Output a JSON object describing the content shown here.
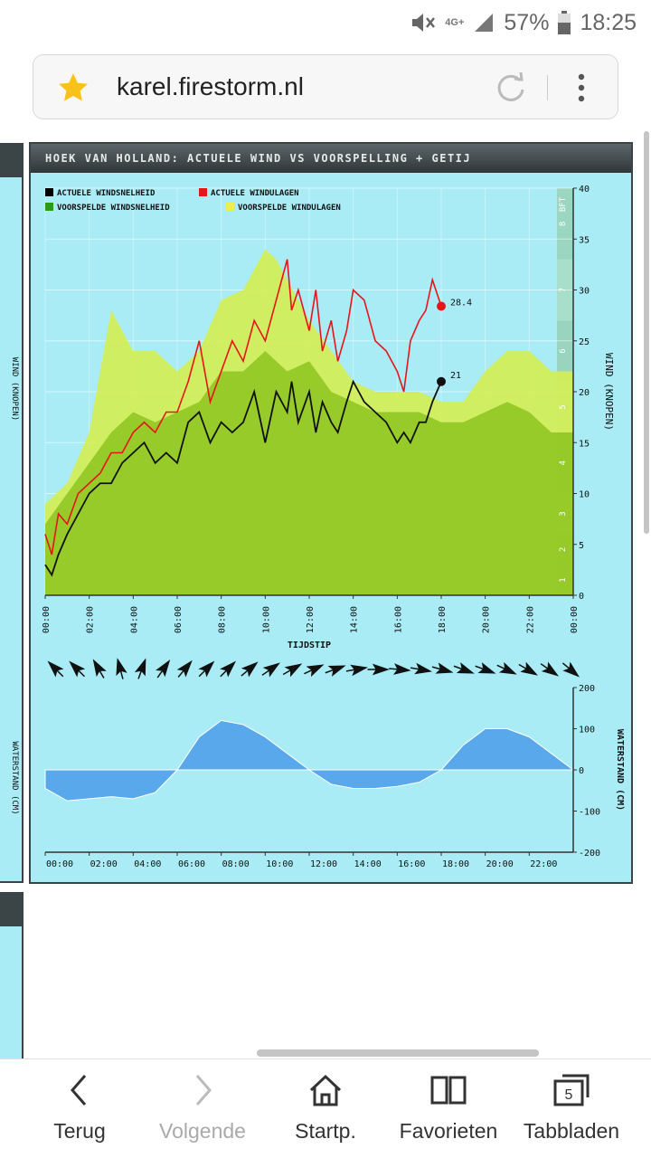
{
  "status_bar": {
    "network": "4G+",
    "battery": "57%",
    "time": "18:25",
    "icons": [
      "mute-icon",
      "signal-icon",
      "battery-icon"
    ]
  },
  "browser": {
    "url": "karel.firestorm.nl",
    "bookmark_icon": "star-icon",
    "reload_icon": "reload-icon",
    "menu_icon": "more-vertical-icon"
  },
  "side_panel": {
    "left_label_top": "WIND (KNOPEN)",
    "left_label_bottom": "WATERSTAND (CM)"
  },
  "widget": {
    "title": "HOEK VAN HOLLAND: ACTUELE WIND VS VOORSPELLING + GETIJ"
  },
  "chart_data": [
    {
      "type": "area",
      "title": "HOEK VAN HOLLAND: ACTUELE WIND VS VOORSPELLING + GETIJ",
      "xlabel": "TIJDSTIP",
      "ylabel": "WIND (KNOPEN)",
      "ylim": [
        0,
        40
      ],
      "yticks": [
        0,
        5,
        10,
        15,
        20,
        25,
        30,
        35,
        40
      ],
      "xticks": [
        "00:00",
        "02:00",
        "04:00",
        "06:00",
        "08:00",
        "10:00",
        "12:00",
        "14:00",
        "16:00",
        "18:00",
        "20:00",
        "22:00",
        "00:00"
      ],
      "bft_label": "BFT",
      "bft_scale": [
        "1",
        "2",
        "3",
        "4",
        "5",
        "6",
        "7",
        "8"
      ],
      "grid": true,
      "legend": [
        "ACTUELE WINDSNELHEID",
        "ACTUELE WINDULAGEN",
        "VOORSPELDE WINDSNELHEID",
        "VOORSPELDE WINDULAGEN"
      ],
      "legend_colors": [
        "#000000",
        "#e8141a",
        "#2a9a1a",
        "#e8f24a"
      ],
      "series": [
        {
          "name": "VOORSPELDE WINDULAGEN",
          "color": "#d2ec4e",
          "x": [
            0,
            1,
            2,
            2.5,
            3,
            4,
            5,
            6,
            7,
            8,
            9,
            10,
            10.5,
            11,
            12,
            13,
            14,
            15,
            16,
            17,
            18,
            19,
            20,
            21,
            22,
            23,
            24
          ],
          "values": [
            9,
            11,
            16,
            22,
            28,
            24,
            24,
            22,
            24,
            29,
            30,
            34,
            33,
            31,
            27,
            24,
            21,
            20,
            20,
            20,
            19,
            19,
            22,
            24,
            24,
            22,
            22
          ]
        },
        {
          "name": "VOORSPELDE WINDSNELHEID",
          "color": "#8cc21a",
          "x": [
            0,
            1,
            2,
            3,
            4,
            5,
            6,
            7,
            8,
            9,
            10,
            11,
            12,
            13,
            14,
            15,
            16,
            17,
            18,
            19,
            20,
            21,
            22,
            23,
            24
          ],
          "values": [
            7,
            10,
            13,
            16,
            18,
            17,
            18,
            19,
            22,
            22,
            24,
            22,
            23,
            20,
            19,
            18,
            18,
            18,
            17,
            17,
            18,
            19,
            18,
            16,
            16
          ]
        },
        {
          "name": "ACTUELE WINDULAGEN",
          "color": "#e8141a",
          "x": [
            0,
            0.3,
            0.6,
            1,
            1.5,
            2,
            2.5,
            3,
            3.5,
            4,
            4.5,
            5,
            5.5,
            6,
            6.5,
            7,
            7.5,
            8,
            8.5,
            9,
            9.5,
            10,
            10.5,
            11,
            11.2,
            11.5,
            12,
            12.3,
            12.6,
            13,
            13.3,
            13.7,
            14,
            14.5,
            15,
            15.5,
            16,
            16.3,
            16.6,
            17,
            17.3,
            17.6,
            18
          ],
          "values": [
            6,
            4,
            8,
            7,
            10,
            11,
            12,
            14,
            14,
            16,
            17,
            16,
            18,
            18,
            21,
            25,
            19,
            22,
            25,
            23,
            27,
            25,
            29,
            33,
            28,
            30,
            26,
            30,
            24,
            27,
            23,
            26,
            30,
            29,
            25,
            24,
            22,
            20,
            25,
            27,
            28,
            31,
            28.4
          ]
        },
        {
          "name": "ACTUELE WINDSNELHEID",
          "color": "#000000",
          "x": [
            0,
            0.3,
            0.6,
            1,
            1.5,
            2,
            2.5,
            3,
            3.5,
            4,
            4.5,
            5,
            5.5,
            6,
            6.5,
            7,
            7.5,
            8,
            8.5,
            9,
            9.5,
            10,
            10.5,
            11,
            11.2,
            11.5,
            12,
            12.3,
            12.6,
            13,
            13.3,
            13.7,
            14,
            14.5,
            15,
            15.5,
            16,
            16.3,
            16.6,
            17,
            17.3,
            17.6,
            18
          ],
          "values": [
            3,
            2,
            4,
            6,
            8,
            10,
            11,
            11,
            13,
            14,
            15,
            13,
            14,
            13,
            17,
            18,
            15,
            17,
            16,
            17,
            20,
            15,
            20,
            18,
            21,
            17,
            20,
            16,
            19,
            17,
            16,
            19,
            21,
            19,
            18,
            17,
            15,
            16,
            15,
            17,
            17,
            19,
            21
          ]
        }
      ],
      "annotations": [
        {
          "series": "ACTUELE WINDULAGEN",
          "x": 18,
          "y": 28.4,
          "text": "28.4"
        },
        {
          "series": "ACTUELE WINDSNELHEID",
          "x": 18,
          "y": 21,
          "text": "21"
        }
      ],
      "wind_direction_arrows_deg": [
        315,
        315,
        330,
        345,
        20,
        35,
        40,
        45,
        45,
        50,
        55,
        60,
        65,
        70,
        80,
        90,
        95,
        100,
        105,
        110,
        110,
        115,
        120,
        125,
        130
      ]
    },
    {
      "type": "area",
      "xlabel": "",
      "ylabel": "WATERSTAND (CM)",
      "ylim": [
        -200,
        200
      ],
      "yticks": [
        -200,
        -100,
        0,
        100,
        200
      ],
      "xticks": [
        "00:00",
        "02:00",
        "04:00",
        "06:00",
        "08:00",
        "10:00",
        "12:00",
        "14:00",
        "16:00",
        "18:00",
        "20:00",
        "22:00"
      ],
      "series": [
        {
          "name": "",
          "color": "#5aa8ec",
          "x": [
            0,
            1,
            2,
            3,
            4,
            5,
            6,
            7,
            8,
            9,
            10,
            11,
            12,
            13,
            14,
            15,
            16,
            17,
            18,
            19,
            20,
            21,
            22,
            23,
            24
          ],
          "values": [
            -45,
            -75,
            -70,
            -65,
            -70,
            -55,
            0,
            80,
            120,
            110,
            80,
            40,
            0,
            -35,
            -45,
            -45,
            -40,
            -30,
            0,
            60,
            100,
            100,
            80,
            40,
            0
          ]
        }
      ]
    }
  ],
  "bottom_nav": {
    "items": [
      {
        "label": "Terug",
        "icon": "back-icon",
        "enabled": true
      },
      {
        "label": "Volgende",
        "icon": "forward-icon",
        "enabled": false
      },
      {
        "label": "Startp.",
        "icon": "home-icon",
        "enabled": true
      },
      {
        "label": "Favorieten",
        "icon": "bookmarks-icon",
        "enabled": true
      },
      {
        "label": "Tabbladen",
        "icon": "tabs-icon",
        "enabled": true,
        "count": "5"
      }
    ]
  }
}
